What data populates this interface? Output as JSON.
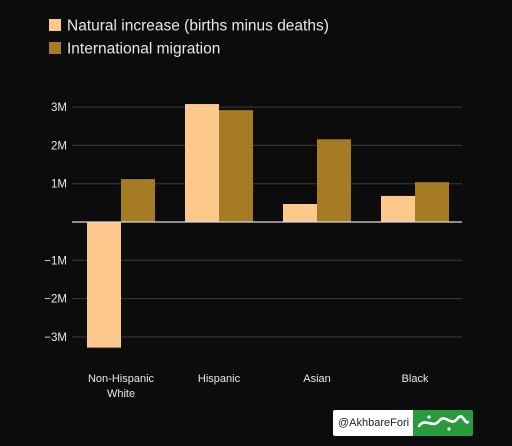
{
  "chart_data": {
    "type": "bar",
    "categories": [
      [
        "Non-Hispanic",
        "White"
      ],
      [
        "Hispanic"
      ],
      [
        "Asian"
      ],
      [
        "Black"
      ]
    ],
    "series": [
      {
        "name": "Natural increase (births minus deaths)",
        "color": "#fdc88c",
        "values": [
          -3.28,
          3.08,
          0.47,
          0.68
        ]
      },
      {
        "name": "International migration",
        "color": "#a57b24",
        "values": [
          1.12,
          2.92,
          2.16,
          1.04
        ]
      }
    ],
    "yticks": [
      {
        "value": 3,
        "label": "3M"
      },
      {
        "value": 2,
        "label": "2M"
      },
      {
        "value": 1,
        "label": "1M"
      },
      {
        "value": -1,
        "label": "−1M"
      },
      {
        "value": -2,
        "label": "−2M"
      },
      {
        "value": -3,
        "label": "−3M"
      }
    ],
    "ylim": [
      -3.3,
      3.5
    ],
    "grid": true,
    "legend_position": "top-left",
    "title": "",
    "xlabel": "",
    "ylabel": ""
  },
  "watermark": {
    "handle": "@AkhbareFori",
    "logo_icon": "khabar-fori-logo-icon"
  }
}
